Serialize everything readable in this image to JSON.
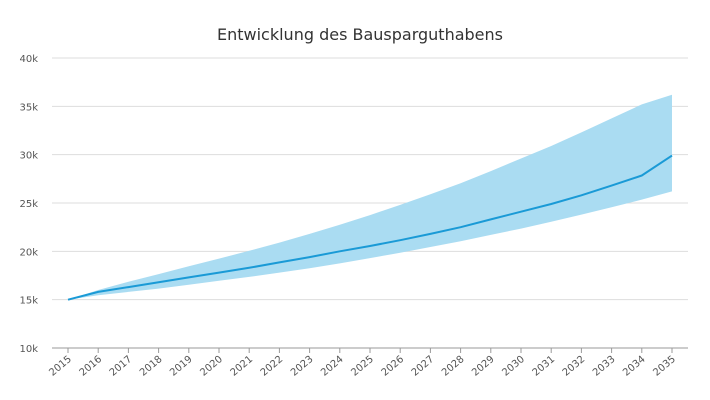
{
  "chart_data": {
    "type": "area",
    "title": "Entwicklung des Bausparguthabens",
    "xlabel": "",
    "ylabel": "",
    "x": [
      "2015",
      "2016",
      "2017",
      "2018",
      "2019",
      "2020",
      "2021",
      "2022",
      "2023",
      "2024",
      "2025",
      "2026",
      "2027",
      "2028",
      "2029",
      "2030",
      "2031",
      "2032",
      "2033",
      "2034",
      "2035"
    ],
    "ylim": [
      10000,
      40000
    ],
    "y_ticks": [
      10000,
      15000,
      20000,
      25000,
      30000,
      35000,
      40000
    ],
    "y_tick_labels": [
      "10k",
      "15k",
      "20k",
      "25k",
      "30k",
      "35k",
      "40k"
    ],
    "grid": true,
    "legend": "none",
    "colors": {
      "line": "#1a9ad6",
      "band": "#aadcf2"
    },
    "series": [
      {
        "values": [
          15000,
          15800,
          16300,
          16800,
          17300,
          17800,
          18300,
          18850,
          19400,
          20000,
          20550,
          21150,
          21800,
          22500,
          23300,
          24100,
          24900,
          25800,
          26800,
          27850,
          29900
        ]
      }
    ],
    "band": {
      "upper": [
        15000,
        16000,
        16850,
        17650,
        18450,
        19250,
        20050,
        20900,
        21800,
        22750,
        23750,
        24800,
        25900,
        27050,
        28300,
        29600,
        30900,
        32300,
        33750,
        35200,
        36200
      ],
      "lower": [
        15000,
        15450,
        15800,
        16150,
        16550,
        16950,
        17350,
        17800,
        18250,
        18750,
        19300,
        19850,
        20450,
        21050,
        21700,
        22350,
        23050,
        23800,
        24550,
        25350,
        26200
      ]
    }
  }
}
